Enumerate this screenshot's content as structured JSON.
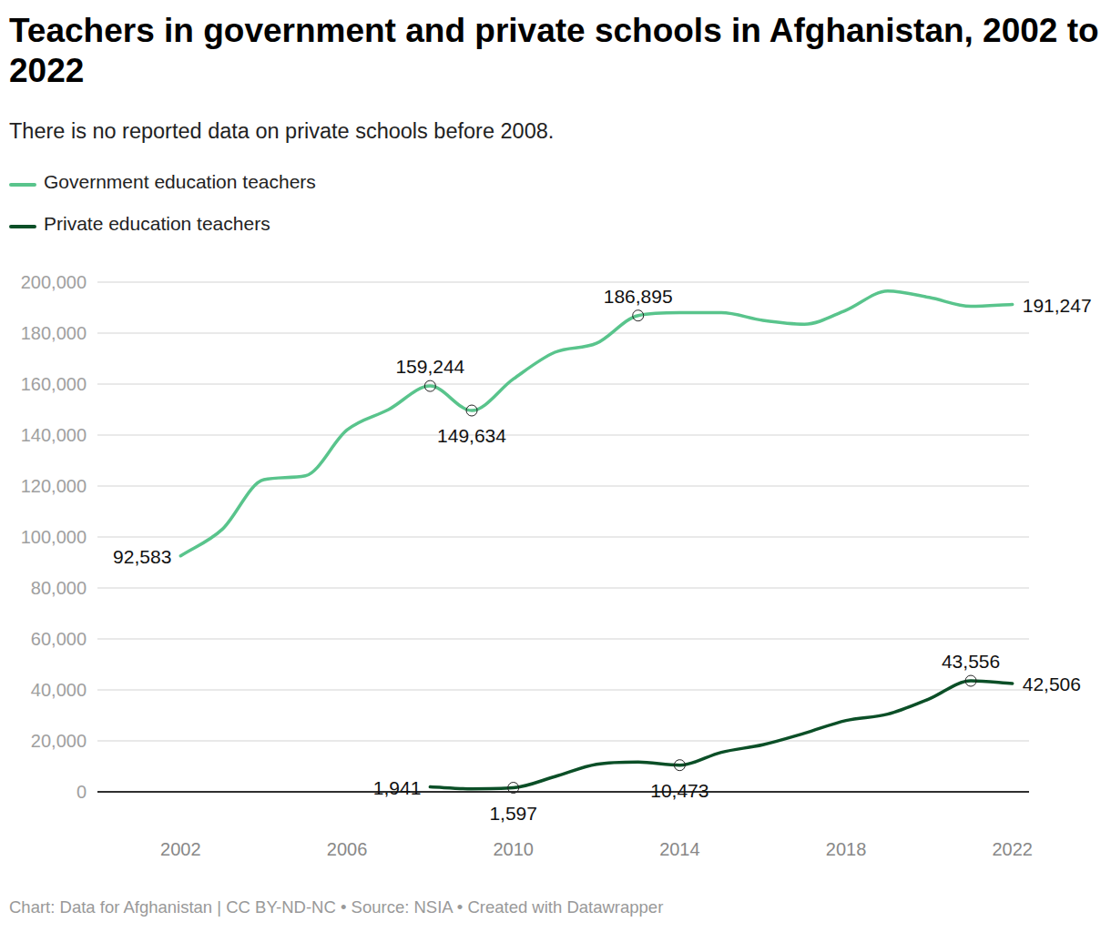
{
  "chart_data": {
    "type": "line",
    "title": "Teachers in government and private schools in Afghanistan, 2002 to 2022",
    "subtitle": "There is no reported data on private schools before 2008.",
    "footer": "Chart: Data for Afghanistan | CC BY-ND-NC • Source: NSIA • Created with Datawrapper",
    "x": [
      2002,
      2003,
      2004,
      2005,
      2006,
      2007,
      2008,
      2009,
      2010,
      2011,
      2012,
      2013,
      2014,
      2015,
      2016,
      2017,
      2018,
      2019,
      2020,
      2021,
      2022
    ],
    "series": [
      {
        "name": "Government education teachers",
        "color": "#59c48c",
        "values": [
          92583,
          103000,
          122500,
          124000,
          142000,
          150000,
          159244,
          149634,
          162000,
          172500,
          176000,
          186895,
          188000,
          188000,
          185000,
          183500,
          189000,
          196500,
          194000,
          190500,
          191247
        ],
        "value_labels": [
          "92,583",
          null,
          null,
          null,
          null,
          null,
          "159,244",
          "149,634",
          null,
          null,
          null,
          "186,895",
          null,
          null,
          null,
          null,
          null,
          null,
          null,
          null,
          "191,247"
        ]
      },
      {
        "name": "Private education teachers",
        "color": "#0b4f27",
        "values": [
          null,
          null,
          null,
          null,
          null,
          null,
          1941,
          1200,
          1597,
          6000,
          10800,
          11700,
          10473,
          15500,
          18500,
          23000,
          28000,
          30500,
          36500,
          43556,
          42506
        ],
        "value_labels": [
          null,
          null,
          null,
          null,
          null,
          null,
          "1,941",
          null,
          "1,597",
          null,
          null,
          null,
          "10,473",
          null,
          null,
          null,
          null,
          null,
          null,
          "43,556",
          "42,506"
        ]
      }
    ],
    "xlim": [
      2000,
      2022.4
    ],
    "ylim": [
      0,
      200000
    ],
    "xticks": [
      2002,
      2006,
      2010,
      2014,
      2018,
      2022
    ],
    "yticks": [
      0,
      {
        "value": 20000,
        "label": "20,000"
      },
      {
        "value": 40000,
        "label": "40,000"
      },
      {
        "value": 60000,
        "label": "60,000"
      },
      {
        "value": 80000,
        "label": "80,000"
      },
      {
        "value": 100000,
        "label": "100,000"
      },
      {
        "value": 120000,
        "label": "120,000"
      },
      {
        "value": 140000,
        "label": "140,000"
      },
      {
        "value": 160000,
        "label": "160,000"
      },
      {
        "value": 180000,
        "label": "180,000"
      },
      {
        "value": 200000,
        "label": "200,000"
      }
    ],
    "grid": true,
    "legend": "top-left"
  }
}
